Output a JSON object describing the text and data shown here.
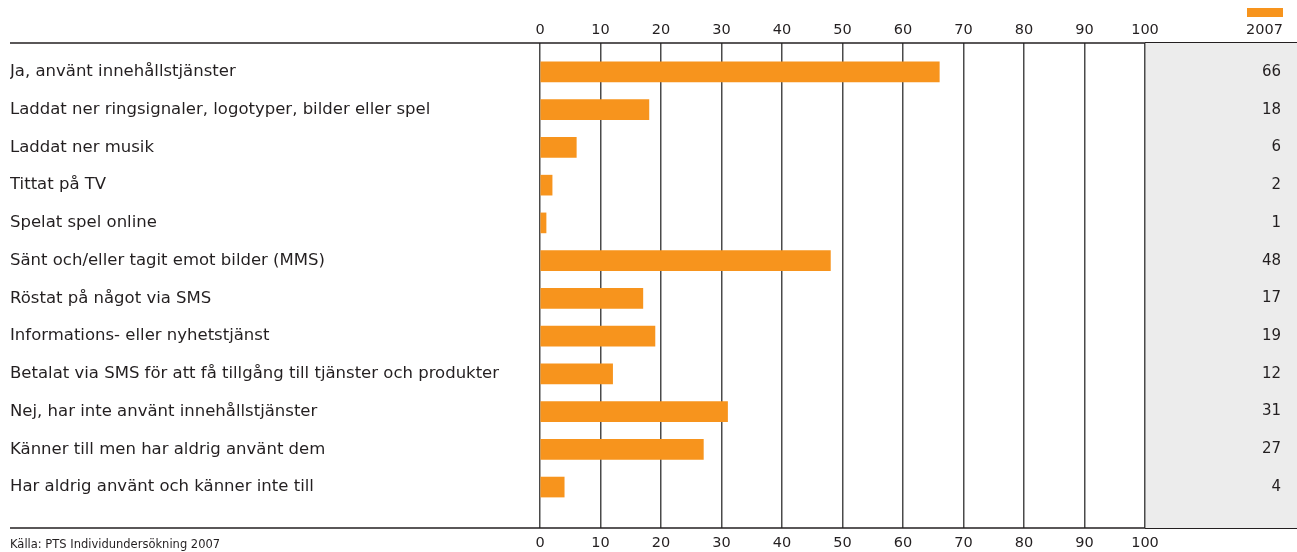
{
  "chart_data": {
    "type": "bar",
    "orientation": "horizontal",
    "categories": [
      "Ja, använt innehållstjänster",
      "Laddat ner ringsignaler, logotyper, bilder eller spel",
      "Laddat ner musik",
      "Tittat på TV",
      "Spelat spel online",
      "Sänt och/eller tagit emot bilder (MMS)",
      "Röstat på något via SMS",
      "Informations- eller nyhetstjänst",
      "Betalat via SMS för att få tillgång till tjänster och produkter",
      "Nej, har inte använt innehållstjänster",
      "Känner till men har aldrig använt dem",
      "Har aldrig använt och känner inte till"
    ],
    "series": [
      {
        "name": "2007",
        "color": "#f7941d",
        "values": [
          66,
          18,
          6,
          2,
          1,
          48,
          17,
          19,
          12,
          31,
          27,
          4
        ]
      }
    ],
    "xlim": [
      0,
      100
    ],
    "xticks": [
      0,
      10,
      20,
      30,
      40,
      50,
      60,
      70,
      80,
      90,
      100
    ],
    "x2lim": [
      0,
      100
    ],
    "x2ticks": [
      0,
      10,
      20,
      30,
      40,
      50,
      60,
      70,
      80,
      90,
      100
    ],
    "grid": "x",
    "legend": "top right",
    "data_labels": true,
    "annotations": [
      "Källa: PTS Individundersökning 2007"
    ]
  }
}
